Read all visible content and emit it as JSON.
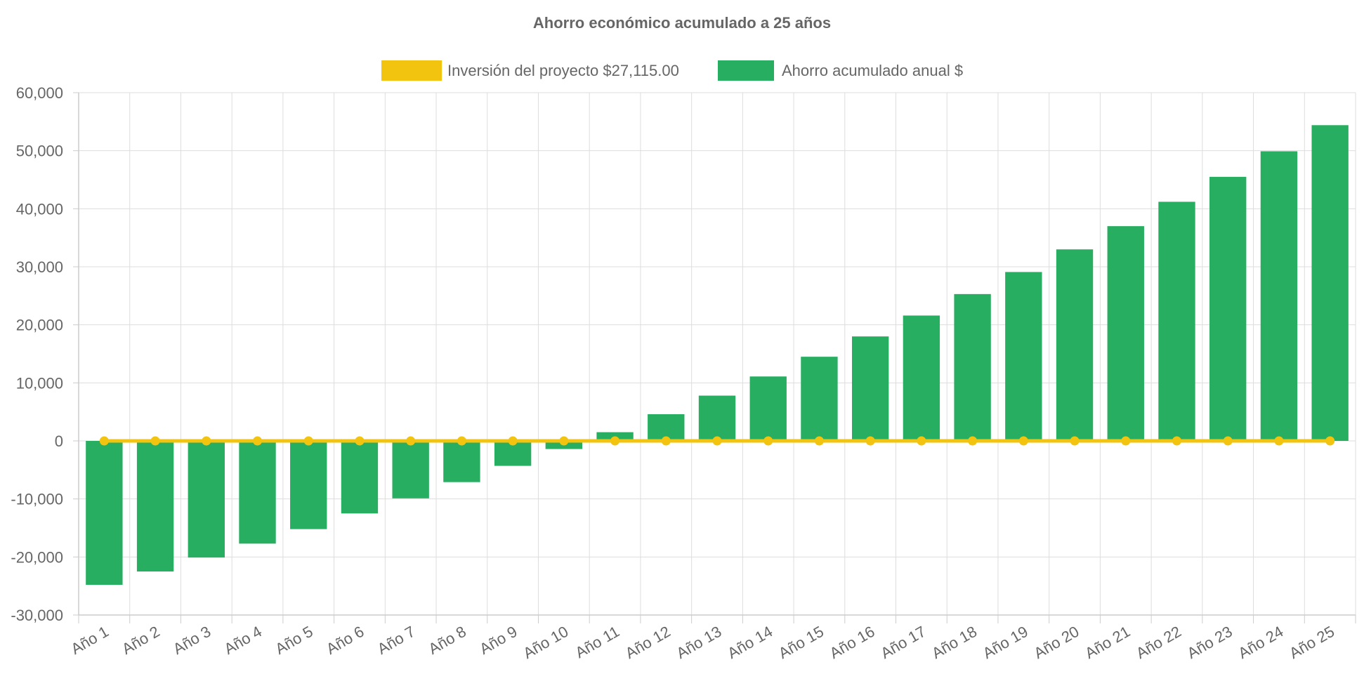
{
  "chart_data": {
    "type": "bar",
    "title": "Ahorro económico acumulado a 25 años",
    "categories": [
      "Año 1",
      "Año 2",
      "Año 3",
      "Año 4",
      "Año 5",
      "Año 6",
      "Año 7",
      "Año 8",
      "Año 9",
      "Año 10",
      "Año 11",
      "Año 12",
      "Año 13",
      "Año 14",
      "Año 15",
      "Año 16",
      "Año 17",
      "Año 18",
      "Año 19",
      "Año 20",
      "Año 21",
      "Año 22",
      "Año 23",
      "Año 24",
      "Año 25"
    ],
    "series": [
      {
        "name": "Inversión del proyecto $27,115.00",
        "type": "line",
        "color": "#F2C40F",
        "values": [
          0,
          0,
          0,
          0,
          0,
          0,
          0,
          0,
          0,
          0,
          0,
          0,
          0,
          0,
          0,
          0,
          0,
          0,
          0,
          0,
          0,
          0,
          0,
          0,
          0
        ]
      },
      {
        "name": "Ahorro acumulado anual $",
        "type": "bar",
        "color": "#27AE60",
        "values": [
          -24800,
          -22500,
          -20100,
          -17700,
          -15200,
          -12500,
          -9900,
          -7100,
          -4300,
          -1400,
          1500,
          4600,
          7800,
          11100,
          14500,
          18000,
          21600,
          25300,
          29100,
          33000,
          37000,
          41200,
          45500,
          49900,
          54400
        ]
      }
    ],
    "ylim": [
      -30000,
      60000
    ],
    "yticks": [
      "60,000",
      "50,000",
      "40,000",
      "30,000",
      "20,000",
      "10,000",
      "0",
      "-10,000",
      "-20,000",
      "-30,000"
    ],
    "ytick_values": [
      60000,
      50000,
      40000,
      30000,
      20000,
      10000,
      0,
      -10000,
      -20000,
      -30000
    ],
    "xlabel": "",
    "ylabel": "",
    "grid": true,
    "legend_position": "top-center"
  }
}
